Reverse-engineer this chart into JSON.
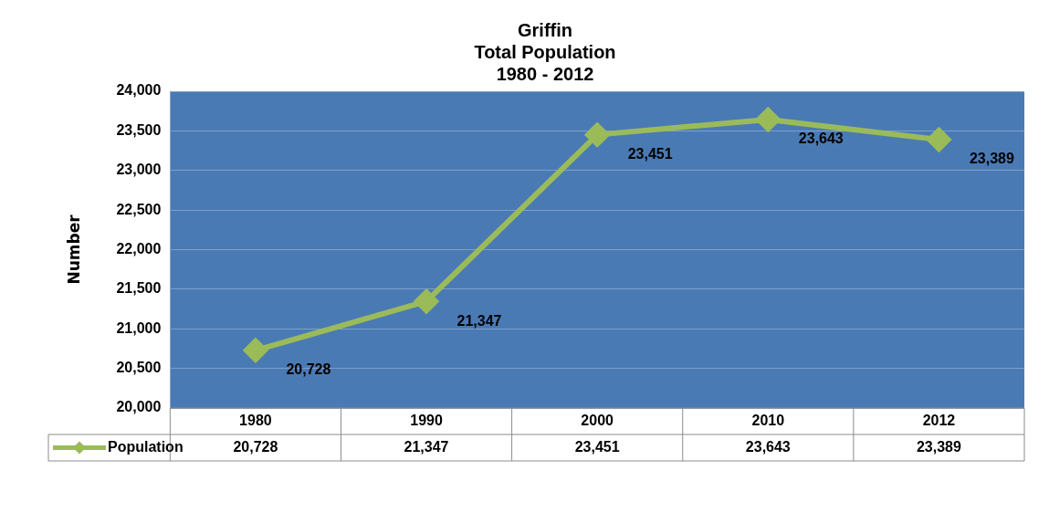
{
  "chart_data": {
    "type": "line",
    "title": [
      "Griffin",
      "Total Population",
      "1980 - 2012"
    ],
    "ylabel": "Number",
    "categories": [
      "1980",
      "1990",
      "2000",
      "2010",
      "2012"
    ],
    "series": [
      {
        "name": "Population",
        "color": "#9bbb59",
        "values": [
          20728,
          21347,
          23451,
          23643,
          23389
        ],
        "value_labels": [
          "20,728",
          "21,347",
          "23,451",
          "23,643",
          "23,389"
        ]
      }
    ],
    "ylim": [
      20000,
      24000
    ],
    "yticks": [
      {
        "value": 20000,
        "label": "20,000"
      },
      {
        "value": 20500,
        "label": "20,500"
      },
      {
        "value": 21000,
        "label": "21,000"
      },
      {
        "value": 21500,
        "label": "21,500"
      },
      {
        "value": 22000,
        "label": "22,000"
      },
      {
        "value": 22500,
        "label": "22,500"
      },
      {
        "value": 23000,
        "label": "23,000"
      },
      {
        "value": 23500,
        "label": "23,500"
      },
      {
        "value": 24000,
        "label": "24,000"
      }
    ],
    "grid": "y",
    "marker": "diamond",
    "line_style": "solid",
    "legend": "bottom"
  }
}
